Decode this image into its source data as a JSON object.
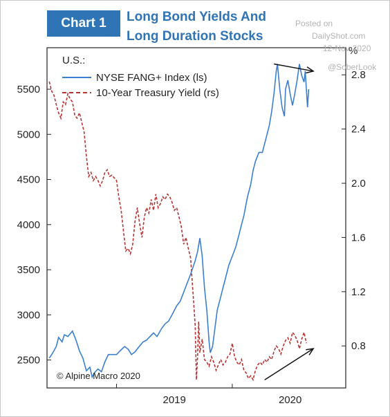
{
  "header": {
    "badge": "Chart 1",
    "title_line1": "Long Bond Yields And",
    "title_line2": "Long Duration Stocks",
    "badge_color": "#2f74b5"
  },
  "watermark": {
    "line1": "Posted on",
    "line2": "DailyShot.com",
    "line3": "12-Nov-2020",
    "line4": "@SoberLook"
  },
  "chart_data": {
    "type": "line",
    "region_label": "U.S.:",
    "source": "© Alpine Macro 2020",
    "y_left": {
      "ticks": [
        2500,
        3000,
        3500,
        4000,
        4500,
        5000,
        5500
      ],
      "range": [
        2190,
        5960
      ]
    },
    "y_right": {
      "unit": "%",
      "ticks": [
        "0.8",
        "1.2",
        "1.6",
        "2.0",
        "2.4",
        "2.8"
      ],
      "range": [
        0.49,
        3.0
      ]
    },
    "x_axis": {
      "labels": [
        "2019",
        "2020"
      ],
      "range": [
        2018.4,
        2020.98
      ],
      "year_starts": [
        2019,
        2020
      ]
    },
    "grid": false,
    "legend": "top-left",
    "series": [
      {
        "name": "NYSE FANG+ Index (ls)",
        "axis": "left",
        "color": "#3a7fcf",
        "style": "solid",
        "points": [
          [
            2018.42,
            2520
          ],
          [
            2018.45,
            2580
          ],
          [
            2018.48,
            2650
          ],
          [
            2018.5,
            2750
          ],
          [
            2018.53,
            2700
          ],
          [
            2018.55,
            2780
          ],
          [
            2018.58,
            2760
          ],
          [
            2018.62,
            2820
          ],
          [
            2018.65,
            2720
          ],
          [
            2018.68,
            2600
          ],
          [
            2018.71,
            2520
          ],
          [
            2018.74,
            2380
          ],
          [
            2018.77,
            2420
          ],
          [
            2018.79,
            2310
          ],
          [
            2018.81,
            2360
          ],
          [
            2018.84,
            2400
          ],
          [
            2018.87,
            2370
          ],
          [
            2018.9,
            2480
          ],
          [
            2018.93,
            2560
          ],
          [
            2018.96,
            2560
          ],
          [
            2019.0,
            2560
          ],
          [
            2019.03,
            2600
          ],
          [
            2019.07,
            2650
          ],
          [
            2019.1,
            2620
          ],
          [
            2019.13,
            2560
          ],
          [
            2019.16,
            2590
          ],
          [
            2019.19,
            2640
          ],
          [
            2019.23,
            2700
          ],
          [
            2019.26,
            2720
          ],
          [
            2019.29,
            2760
          ],
          [
            2019.32,
            2800
          ],
          [
            2019.35,
            2760
          ],
          [
            2019.39,
            2850
          ],
          [
            2019.42,
            2900
          ],
          [
            2019.45,
            2930
          ],
          [
            2019.48,
            3000
          ],
          [
            2019.52,
            3100
          ],
          [
            2019.55,
            3150
          ],
          [
            2019.58,
            3250
          ],
          [
            2019.61,
            3350
          ],
          [
            2019.64,
            3450
          ],
          [
            2019.68,
            3600
          ],
          [
            2019.7,
            3700
          ],
          [
            2019.72,
            3850
          ],
          [
            2019.74,
            3650
          ],
          [
            2019.76,
            3300
          ],
          [
            2019.78,
            3050
          ],
          [
            2019.8,
            2700
          ],
          [
            2019.81,
            2580
          ],
          [
            2019.83,
            2650
          ],
          [
            2019.85,
            2850
          ],
          [
            2019.87,
            3050
          ],
          [
            2019.9,
            3200
          ],
          [
            2019.92,
            3300
          ],
          [
            2019.94,
            3400
          ],
          [
            2019.97,
            3550
          ],
          [
            2020.0,
            3650
          ],
          [
            2020.03,
            3750
          ],
          [
            2020.06,
            3900
          ],
          [
            2020.08,
            4000
          ],
          [
            2020.1,
            4100
          ],
          [
            2020.13,
            4300
          ],
          [
            2020.16,
            4450
          ],
          [
            2020.18,
            4600
          ],
          [
            2020.2,
            4700
          ],
          [
            2020.23,
            4800
          ],
          [
            2020.26,
            4800
          ],
          [
            2020.29,
            4950
          ],
          [
            2020.32,
            5100
          ],
          [
            2020.34,
            5250
          ],
          [
            2020.36,
            5450
          ],
          [
            2020.38,
            5700
          ],
          [
            2020.39,
            5780
          ],
          [
            2020.41,
            5500
          ],
          [
            2020.43,
            5300
          ],
          [
            2020.45,
            5200
          ],
          [
            2020.46,
            5500
          ],
          [
            2020.48,
            5600
          ],
          [
            2020.5,
            5450
          ],
          [
            2020.52,
            5320
          ],
          [
            2020.54,
            5450
          ],
          [
            2020.56,
            5600
          ],
          [
            2020.58,
            5780
          ],
          [
            2020.6,
            5650
          ],
          [
            2020.62,
            5580
          ],
          [
            2020.63,
            5700
          ],
          [
            2020.65,
            5300
          ],
          [
            2020.66,
            5500
          ]
        ]
      },
      {
        "name": "10-Year Treasury Yield (rs)",
        "axis": "right",
        "color": "#b83232",
        "style": "dashed",
        "points": [
          [
            2018.42,
            2.75
          ],
          [
            2018.44,
            2.68
          ],
          [
            2018.46,
            2.65
          ],
          [
            2018.48,
            2.58
          ],
          [
            2018.5,
            2.52
          ],
          [
            2018.52,
            2.48
          ],
          [
            2018.54,
            2.6
          ],
          [
            2018.56,
            2.58
          ],
          [
            2018.58,
            2.66
          ],
          [
            2018.6,
            2.62
          ],
          [
            2018.62,
            2.6
          ],
          [
            2018.64,
            2.5
          ],
          [
            2018.66,
            2.48
          ],
          [
            2018.68,
            2.52
          ],
          [
            2018.7,
            2.45
          ],
          [
            2018.72,
            2.38
          ],
          [
            2018.74,
            2.2
          ],
          [
            2018.76,
            2.05
          ],
          [
            2018.78,
            2.08
          ],
          [
            2018.8,
            2.02
          ],
          [
            2018.82,
            2.05
          ],
          [
            2018.84,
            2.02
          ],
          [
            2018.86,
            1.98
          ],
          [
            2018.88,
            2.02
          ],
          [
            2018.9,
            2.08
          ],
          [
            2018.92,
            2.1
          ],
          [
            2018.94,
            2.05
          ],
          [
            2018.96,
            2.06
          ],
          [
            2018.98,
            2.04
          ],
          [
            2019.0,
            2.02
          ],
          [
            2019.02,
            1.9
          ],
          [
            2019.04,
            1.8
          ],
          [
            2019.06,
            1.65
          ],
          [
            2019.08,
            1.5
          ],
          [
            2019.1,
            1.52
          ],
          [
            2019.12,
            1.48
          ],
          [
            2019.14,
            1.55
          ],
          [
            2019.16,
            1.72
          ],
          [
            2019.18,
            1.82
          ],
          [
            2019.2,
            1.7
          ],
          [
            2019.22,
            1.6
          ],
          [
            2019.24,
            1.75
          ],
          [
            2019.26,
            1.82
          ],
          [
            2019.28,
            1.78
          ],
          [
            2019.3,
            1.88
          ],
          [
            2019.32,
            1.8
          ],
          [
            2019.34,
            1.92
          ],
          [
            2019.36,
            1.82
          ],
          [
            2019.38,
            1.85
          ],
          [
            2019.4,
            1.9
          ],
          [
            2019.42,
            1.88
          ],
          [
            2019.44,
            1.92
          ],
          [
            2019.46,
            1.9
          ],
          [
            2019.48,
            1.86
          ],
          [
            2019.5,
            1.8
          ],
          [
            2019.52,
            1.82
          ],
          [
            2019.54,
            1.75
          ],
          [
            2019.56,
            1.68
          ],
          [
            2019.58,
            1.55
          ],
          [
            2019.6,
            1.6
          ],
          [
            2019.62,
            1.52
          ],
          [
            2019.64,
            1.45
          ],
          [
            2019.66,
            1.2
          ],
          [
            2019.68,
            0.95
          ],
          [
            2019.69,
            0.55
          ],
          [
            2019.7,
            0.72
          ],
          [
            2019.71,
            0.98
          ],
          [
            2019.72,
            0.75
          ],
          [
            2019.74,
            0.85
          ],
          [
            2019.76,
            0.7
          ],
          [
            2019.78,
            0.68
          ],
          [
            2019.8,
            0.65
          ],
          [
            2019.82,
            0.72
          ],
          [
            2019.84,
            0.68
          ],
          [
            2019.86,
            0.62
          ],
          [
            2019.88,
            0.66
          ],
          [
            2019.9,
            0.7
          ],
          [
            2019.92,
            0.66
          ],
          [
            2019.94,
            0.68
          ],
          [
            2019.96,
            0.72
          ],
          [
            2019.98,
            0.74
          ],
          [
            2020.0,
            0.82
          ],
          [
            2020.02,
            0.72
          ],
          [
            2020.04,
            0.68
          ],
          [
            2020.06,
            0.66
          ],
          [
            2020.08,
            0.7
          ],
          [
            2020.1,
            0.62
          ],
          [
            2020.12,
            0.6
          ],
          [
            2020.14,
            0.56
          ],
          [
            2020.16,
            0.58
          ],
          [
            2020.18,
            0.55
          ],
          [
            2020.2,
            0.62
          ],
          [
            2020.22,
            0.66
          ],
          [
            2020.24,
            0.68
          ],
          [
            2020.26,
            0.66
          ],
          [
            2020.28,
            0.7
          ],
          [
            2020.3,
            0.68
          ],
          [
            2020.32,
            0.72
          ],
          [
            2020.34,
            0.7
          ],
          [
            2020.36,
            0.76
          ],
          [
            2020.38,
            0.8
          ],
          [
            2020.4,
            0.78
          ],
          [
            2020.42,
            0.74
          ],
          [
            2020.44,
            0.8
          ],
          [
            2020.46,
            0.84
          ],
          [
            2020.48,
            0.86
          ],
          [
            2020.5,
            0.82
          ],
          [
            2020.52,
            0.9
          ],
          [
            2020.54,
            0.88
          ],
          [
            2020.56,
            0.84
          ],
          [
            2020.58,
            0.78
          ],
          [
            2020.6,
            0.85
          ],
          [
            2020.62,
            0.9
          ],
          [
            2020.64,
            0.82
          ]
        ]
      }
    ],
    "annotations": [
      {
        "type": "arrow",
        "from": [
          2020.36,
          5780
        ],
        "to": [
          2020.7,
          5700
        ],
        "axis": "left"
      },
      {
        "type": "arrow",
        "from": [
          2020.28,
          0.55
        ],
        "to": [
          2020.7,
          0.78
        ],
        "axis": "right"
      }
    ]
  }
}
